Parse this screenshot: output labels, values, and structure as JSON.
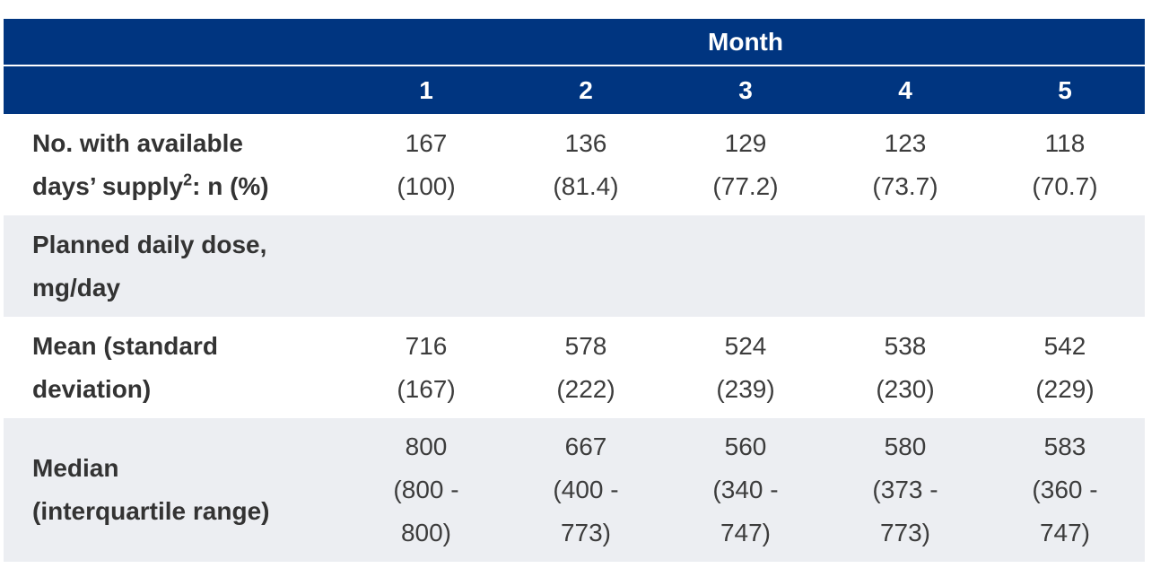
{
  "header": {
    "group_label": "Month",
    "columns": [
      "1",
      "2",
      "3",
      "4",
      "5"
    ]
  },
  "rows": [
    {
      "label_line1": "No. with available",
      "label_line2_pre": "days’ supply",
      "label_sup": "2",
      "label_line2_post": ": n (%)",
      "values": [
        "167\n(100)",
        "136\n(81.4)",
        "129\n(77.2)",
        "123\n(73.7)",
        "118\n(70.7)"
      ]
    },
    {
      "label": "Planned daily dose,\nmg/day",
      "values": [
        "",
        "",
        "",
        "",
        ""
      ]
    },
    {
      "label": "Mean (standard\ndeviation)",
      "values": [
        "716\n(167)",
        "578\n(222)",
        "524\n(239)",
        "538\n(230)",
        "542\n(229)"
      ]
    },
    {
      "label": "Median\n(interquartile range)",
      "values": [
        "800\n(800 -\n800)",
        "667\n(400 -\n773)",
        "560\n(340 -\n747)",
        "580\n(373 -\n773)",
        "583\n(360 -\n747)"
      ]
    }
  ],
  "colors": {
    "header_bg": "#003580",
    "shaded_row_bg": "#eceef2"
  }
}
